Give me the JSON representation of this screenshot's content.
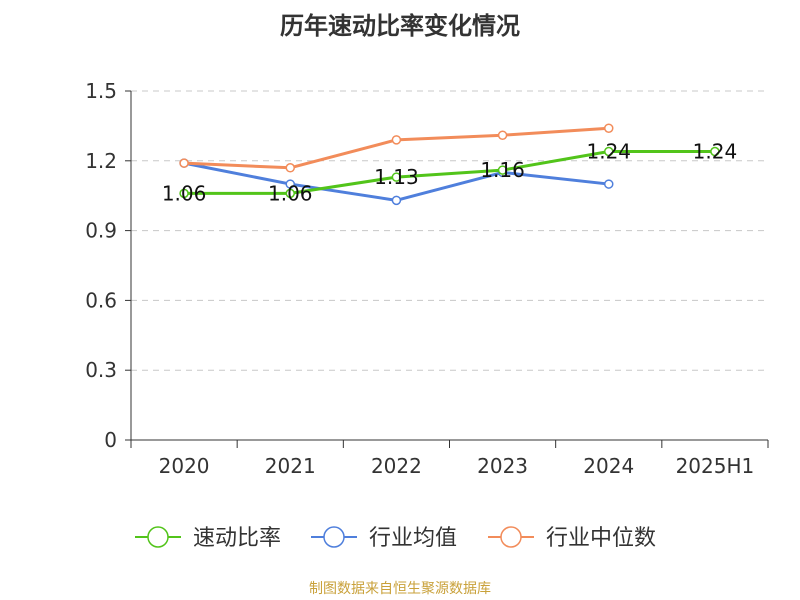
{
  "chart_data": {
    "type": "line",
    "title": "历年速动比率变化情况",
    "categories": [
      "2020",
      "2021",
      "2022",
      "2023",
      "2024",
      "2025H1"
    ],
    "ylim": [
      0,
      1.5
    ],
    "yticks": [
      "0",
      "0.3",
      "0.6",
      "0.9",
      "1.2",
      "1.5"
    ],
    "grid": true,
    "legend_position": "bottom",
    "series": [
      {
        "name": "速动比率",
        "color": "#52c41a",
        "values": [
          1.06,
          1.06,
          1.13,
          1.16,
          1.24,
          1.24
        ],
        "labels": [
          "1.06",
          "1.06",
          "1.13",
          "1.16",
          "1.24",
          "1.24"
        ]
      },
      {
        "name": "行业均值",
        "color": "#4f7fdc",
        "values": [
          1.19,
          1.1,
          1.03,
          1.15,
          1.1,
          null
        ]
      },
      {
        "name": "行业中位数",
        "color": "#f28c5a",
        "values": [
          1.19,
          1.17,
          1.29,
          1.31,
          1.34,
          null
        ]
      }
    ]
  },
  "source_text": "制图数据来自恒生聚源数据库"
}
